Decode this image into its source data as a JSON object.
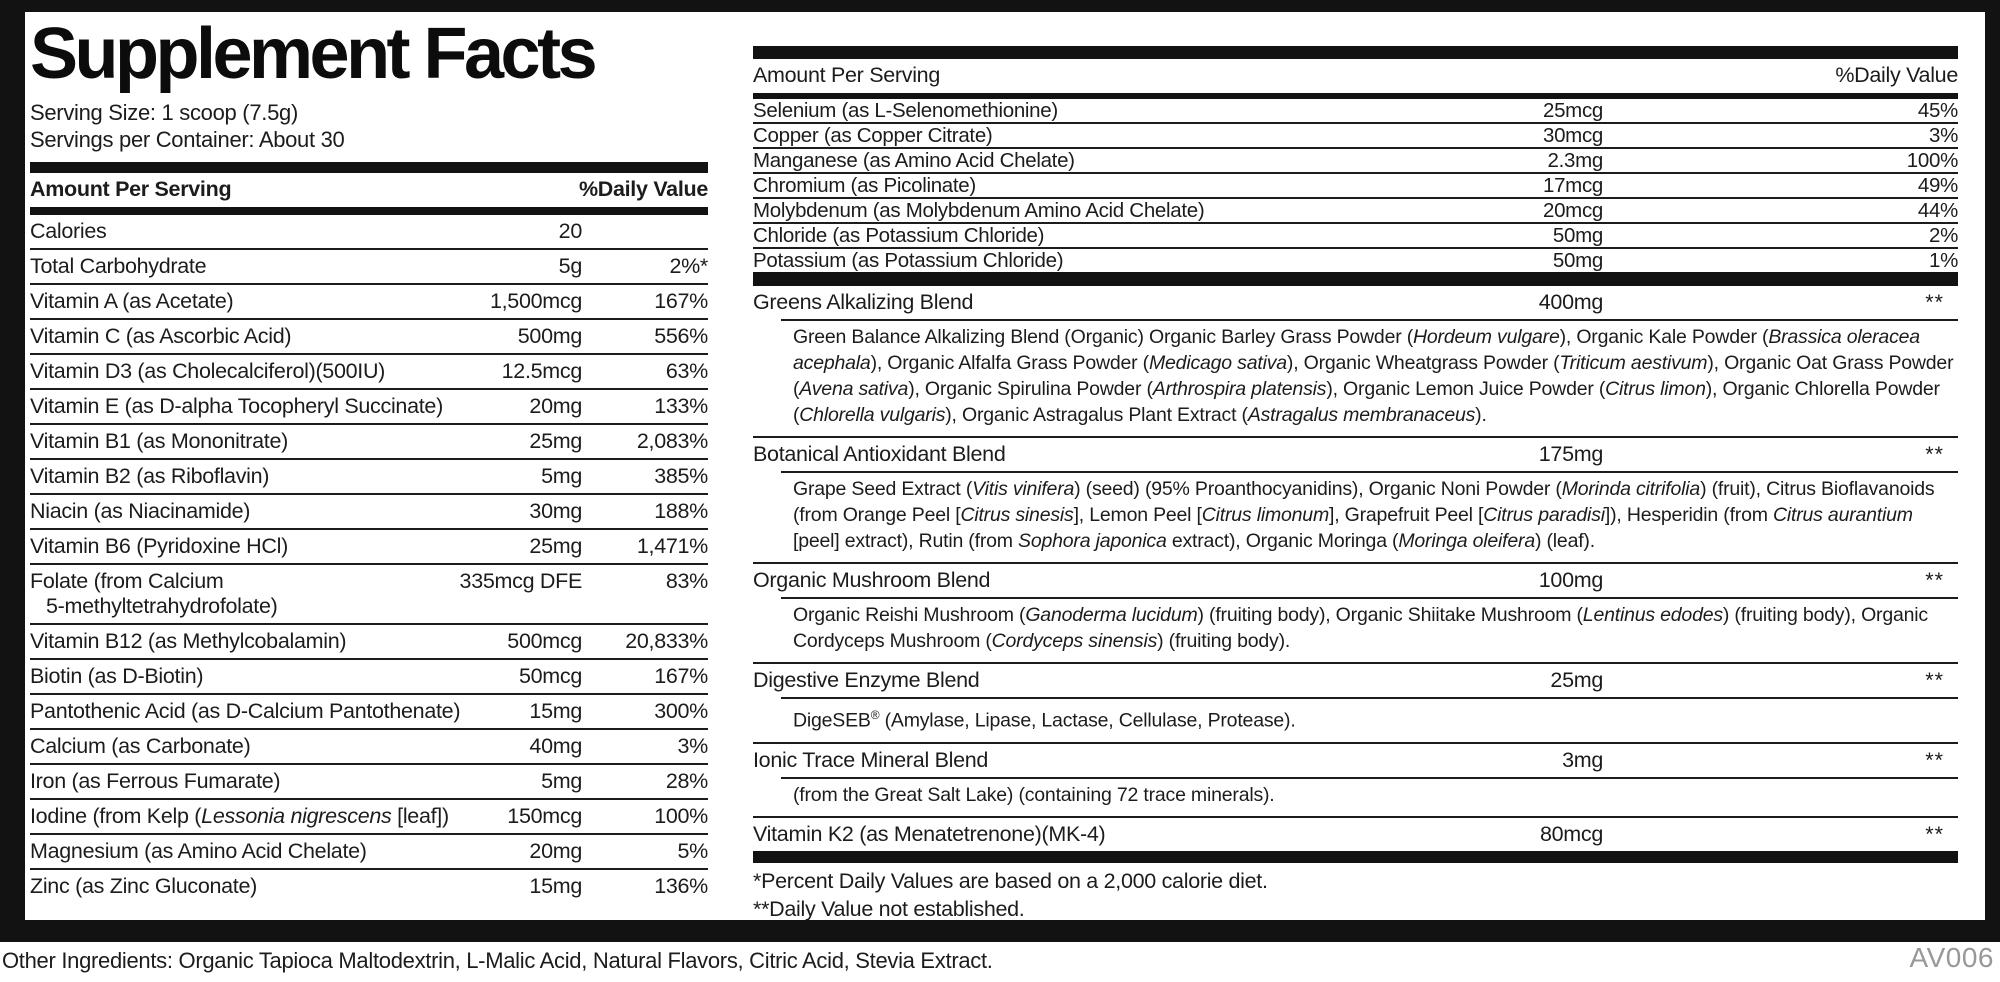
{
  "label": {
    "title": "Supplement Facts",
    "serving_size": "Serving Size: 1 scoop (7.5g)",
    "servings_per_container": "Servings per Container: About 30",
    "column_headers": {
      "amount": "Amount Per Serving",
      "daily_value": "%Daily Value"
    },
    "colors": {
      "ink": "#1c1c1c",
      "bar": "#121212",
      "product_code_gray": "#98989a"
    },
    "left_rows": [
      {
        "name_parts": [
          {
            "t": "Calories"
          }
        ],
        "amount": "20",
        "dv": ""
      },
      {
        "name_parts": [
          {
            "t": "Total Carbohydrate"
          }
        ],
        "amount": "5g",
        "dv": "2%*"
      },
      {
        "name_parts": [
          {
            "t": "Vitamin A (as Acetate)"
          }
        ],
        "amount": "1,500mcg",
        "dv": "167%"
      },
      {
        "name_parts": [
          {
            "t": "Vitamin C (as Ascorbic Acid)"
          }
        ],
        "amount": "500mg",
        "dv": "556%"
      },
      {
        "name_parts": [
          {
            "t": "Vitamin D3 (as Cholecalciferol)(500IU)"
          }
        ],
        "amount": "12.5mcg",
        "dv": "63%"
      },
      {
        "name_parts": [
          {
            "t": "Vitamin E (as D-alpha Tocopheryl Succinate)"
          }
        ],
        "amount": "20mg",
        "dv": "133%"
      },
      {
        "name_parts": [
          {
            "t": "Vitamin B1 (as Mononitrate)"
          }
        ],
        "amount": "25mg",
        "dv": "2,083%"
      },
      {
        "name_parts": [
          {
            "t": "Vitamin B2 (as Riboflavin)"
          }
        ],
        "amount": "5mg",
        "dv": "385%"
      },
      {
        "name_parts": [
          {
            "t": "Niacin (as Niacinamide)"
          }
        ],
        "amount": "30mg",
        "dv": "188%"
      },
      {
        "name_parts": [
          {
            "t": "Vitamin B6 (Pyridoxine HCl)"
          }
        ],
        "amount": "25mg",
        "dv": "1,471%"
      },
      {
        "name_parts": [
          {
            "t": "Folate (from Calcium"
          },
          {
            "br": true
          },
          {
            "t": "5-methyltetrahydrofolate)",
            "indent": true
          }
        ],
        "amount": "335mcg DFE",
        "dv": "83%"
      },
      {
        "name_parts": [
          {
            "t": "Vitamin B12 (as Methylcobalamin)"
          }
        ],
        "amount": "500mcg",
        "dv": "20,833%"
      },
      {
        "name_parts": [
          {
            "t": "Biotin (as D-Biotin)"
          }
        ],
        "amount": "50mcg",
        "dv": "167%"
      },
      {
        "name_parts": [
          {
            "t": "Pantothenic Acid (as D-Calcium Pantothenate)"
          }
        ],
        "amount": "15mg",
        "dv": "300%"
      },
      {
        "name_parts": [
          {
            "t": "Calcium (as Carbonate)"
          }
        ],
        "amount": "40mg",
        "dv": "3%"
      },
      {
        "name_parts": [
          {
            "t": "Iron (as Ferrous Fumarate)"
          }
        ],
        "amount": "5mg",
        "dv": "28%"
      },
      {
        "name_parts": [
          {
            "t": "Iodine (from Kelp ("
          },
          {
            "t": "Lessonia nigrescens",
            "i": true
          },
          {
            "t": " [leaf])"
          }
        ],
        "amount": "150mcg",
        "dv": "100%"
      },
      {
        "name_parts": [
          {
            "t": "Magnesium (as Amino Acid Chelate)"
          }
        ],
        "amount": "20mg",
        "dv": "5%"
      },
      {
        "name_parts": [
          {
            "t": "Zinc (as Zinc Gluconate)"
          }
        ],
        "amount": "15mg",
        "dv": "136%"
      }
    ],
    "right_rows": [
      {
        "name_parts": [
          {
            "t": "Selenium (as L-Selenomethionine)"
          }
        ],
        "amount": "25mcg",
        "dv": "45%"
      },
      {
        "name_parts": [
          {
            "t": "Copper (as Copper Citrate)"
          }
        ],
        "amount": "30mcg",
        "dv": "3%"
      },
      {
        "name_parts": [
          {
            "t": "Manganese (as Amino Acid Chelate)"
          }
        ],
        "amount": "2.3mg",
        "dv": "100%"
      },
      {
        "name_parts": [
          {
            "t": "Chromium (as Picolinate)"
          }
        ],
        "amount": "17mcg",
        "dv": "49%"
      },
      {
        "name_parts": [
          {
            "t": "Molybdenum (as Molybdenum Amino Acid Chelate)"
          }
        ],
        "amount": "20mcg",
        "dv": "44%"
      },
      {
        "name_parts": [
          {
            "t": "Chloride (as Potassium Chloride)"
          }
        ],
        "amount": "50mg",
        "dv": "2%"
      },
      {
        "name_parts": [
          {
            "t": "Potassium (as Potassium Chloride)"
          }
        ],
        "amount": "50mg",
        "dv": "1%"
      }
    ],
    "blends": [
      {
        "name": "Greens Alkalizing Blend",
        "amount": "400mg",
        "dv": "**",
        "desc_parts": [
          {
            "t": "Green Balance Alkalizing Blend (Organic) Organic Barley Grass Powder ("
          },
          {
            "t": "Hordeum vulgare",
            "i": true
          },
          {
            "t": "), Organic Kale Powder ("
          },
          {
            "t": "Brassica oleracea acephala",
            "i": true
          },
          {
            "t": "), Organic Alfalfa Grass Powder ("
          },
          {
            "t": "Medicago sativa",
            "i": true
          },
          {
            "t": "), Organic Wheatgrass Powder ("
          },
          {
            "t": "Triticum aestivum",
            "i": true
          },
          {
            "t": "), Organic Oat Grass Powder ("
          },
          {
            "t": "Avena sativa",
            "i": true
          },
          {
            "t": "), Organic Spirulina Powder ("
          },
          {
            "t": "Arthrospira platensis",
            "i": true
          },
          {
            "t": "), Organic Lemon Juice Powder ("
          },
          {
            "t": "Citrus limon",
            "i": true
          },
          {
            "t": "), Organic Chlorella Powder ("
          },
          {
            "t": "Chlorella vulgaris",
            "i": true
          },
          {
            "t": "), Organic Astragalus Plant Extract ("
          },
          {
            "t": "Astragalus membranaceus",
            "i": true
          },
          {
            "t": ")."
          }
        ]
      },
      {
        "name": "Botanical Antioxidant Blend",
        "amount": "175mg",
        "dv": "**",
        "desc_parts": [
          {
            "t": "Grape Seed Extract ("
          },
          {
            "t": "Vitis vinifera",
            "i": true
          },
          {
            "t": ") (seed) (95% Proanthocyanidins), Organic Noni Powder ("
          },
          {
            "t": "Morinda citrifolia",
            "i": true
          },
          {
            "t": ") (fruit), Citrus Bioflavanoids (from Orange Peel ["
          },
          {
            "t": "Citrus sinesis",
            "i": true
          },
          {
            "t": "], Lemon Peel ["
          },
          {
            "t": "Citrus limonum",
            "i": true
          },
          {
            "t": "], Grapefruit Peel ["
          },
          {
            "t": "Citrus paradisi",
            "i": true
          },
          {
            "t": "]), Hesperidin (from "
          },
          {
            "t": "Citrus aurantium",
            "i": true
          },
          {
            "t": " [peel] extract), Rutin (from "
          },
          {
            "t": "Sophora japonica",
            "i": true
          },
          {
            "t": " extract), Organic Moringa ("
          },
          {
            "t": "Moringa oleifera",
            "i": true
          },
          {
            "t": ") (leaf)."
          }
        ]
      },
      {
        "name": "Organic Mushroom Blend",
        "amount": "100mg",
        "dv": "**",
        "desc_parts": [
          {
            "t": "Organic Reishi Mushroom ("
          },
          {
            "t": "Ganoderma lucidum",
            "i": true
          },
          {
            "t": ") (fruiting body), Organic Shiitake Mushroom ("
          },
          {
            "t": "Lentinus edodes",
            "i": true
          },
          {
            "t": ") (fruiting body), Organic Cordyceps Mushroom ("
          },
          {
            "t": "Cordyceps sinensis",
            "i": true
          },
          {
            "t": ") (fruiting body)."
          }
        ]
      },
      {
        "name": "Digestive Enzyme Blend",
        "amount": "25mg",
        "dv": "**",
        "desc_parts": [
          {
            "t": "DigeSEB"
          },
          {
            "t": "®",
            "sup": true
          },
          {
            "t": " (Amylase, Lipase, Lactase, Cellulase, Protease)."
          }
        ]
      },
      {
        "name": "Ionic Trace Mineral Blend",
        "amount": "3mg",
        "dv": "**",
        "desc_parts": [
          {
            "t": "(from the Great Salt Lake) (containing 72 trace minerals)."
          }
        ]
      },
      {
        "name": "Vitamin K2 (as Menatetrenone)(MK-4)",
        "amount": "80mcg",
        "dv": "**",
        "desc_parts": null
      }
    ],
    "footnotes": [
      "*Percent Daily Values are based on a 2,000 calorie diet.",
      "**Daily Value not established."
    ],
    "other_ingredients": "Other Ingredients: Organic Tapioca Maltodextrin, L-Malic Acid, Natural Flavors, Citric Acid, Stevia Extract.",
    "product_code": "AV006"
  }
}
